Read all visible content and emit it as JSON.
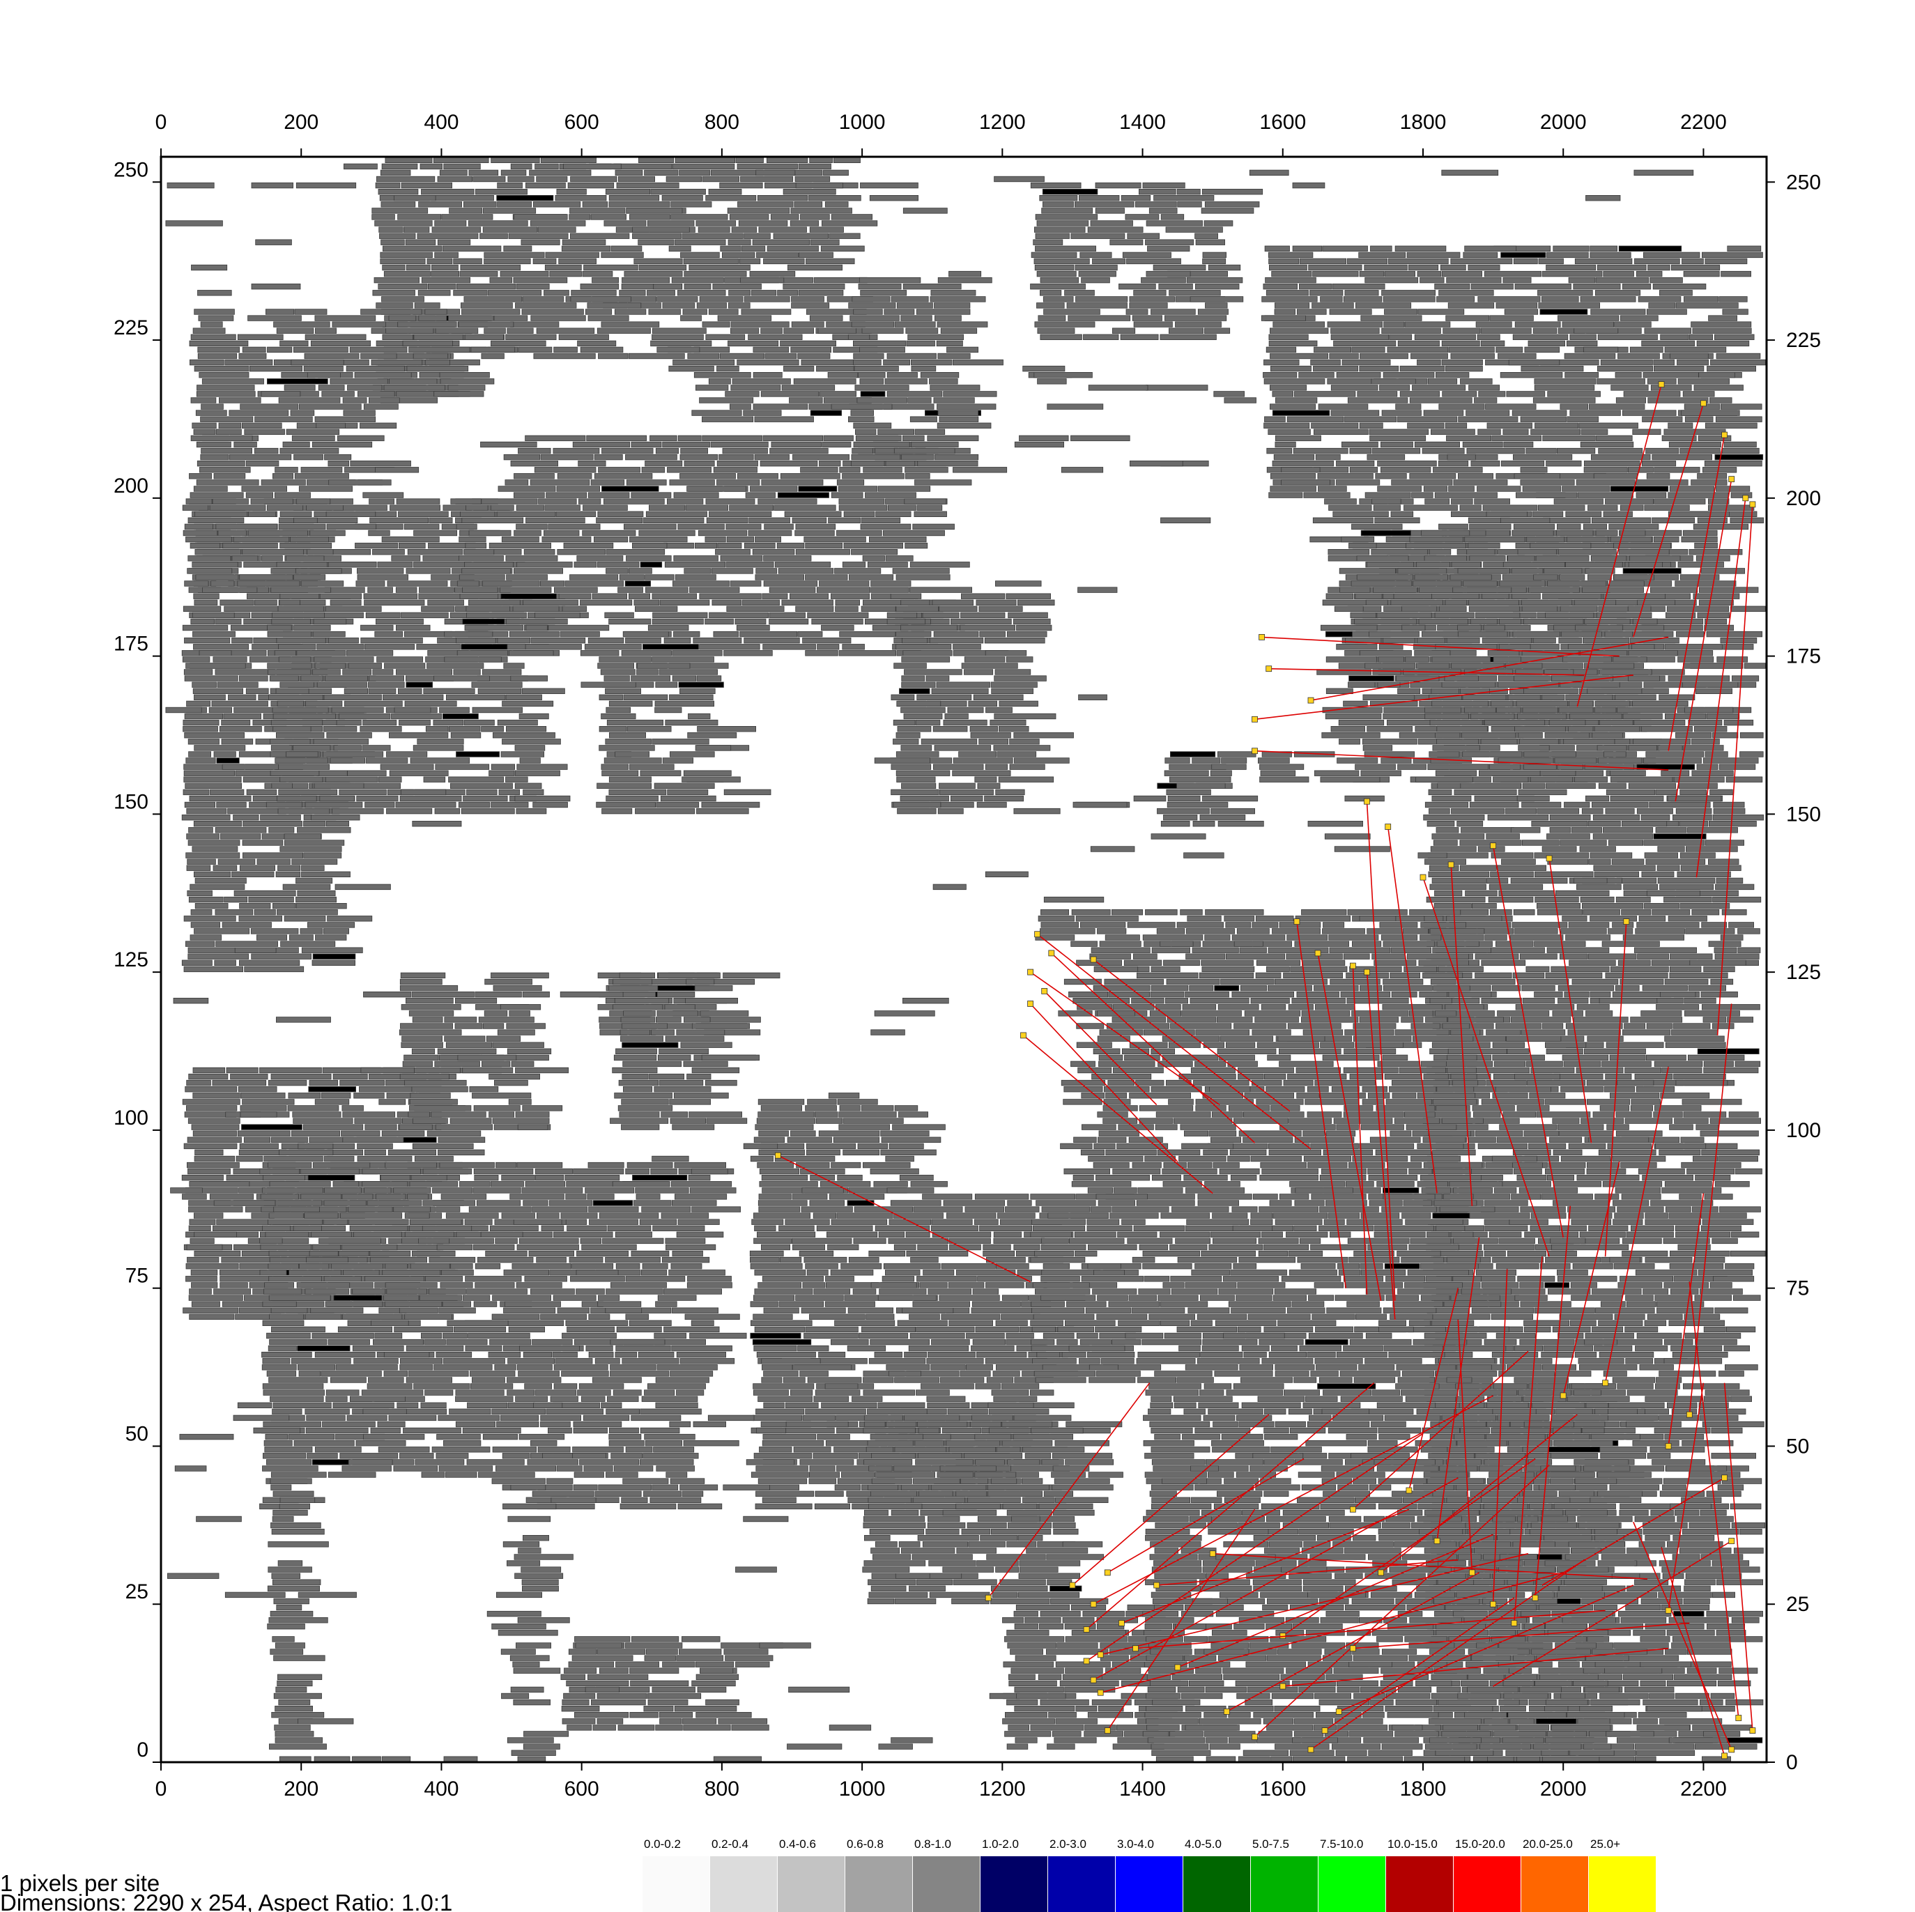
{
  "chart_data": {
    "type": "heatmap",
    "description_units": "site coordinates",
    "x_range": [
      0,
      2290
    ],
    "y_range": [
      0,
      254
    ],
    "x_ticks": [
      0,
      200,
      400,
      600,
      800,
      1000,
      1200,
      1400,
      1600,
      1800,
      2000,
      2200
    ],
    "y_ticks": [
      0,
      25,
      50,
      75,
      100,
      125,
      150,
      175,
      200,
      225,
      250
    ],
    "tick_labels_x": [
      "0",
      "200",
      "400",
      "600",
      "800",
      "1000",
      "1200",
      "1400",
      "1600",
      "1800",
      "2000",
      "2200"
    ],
    "tick_labels_y": [
      "0",
      "25",
      "50",
      "75",
      "100",
      "125",
      "150",
      "175",
      "200",
      "225",
      "250"
    ],
    "cell_fill": "#6b6b6b",
    "cell_stroke": "#3a3a3a",
    "move_line_color": "#dd0000",
    "move_marker_color": "#ffd21f",
    "legend": [
      {
        "label": "0.0-0.2",
        "color": "#fafafa"
      },
      {
        "label": "0.2-0.4",
        "color": "#dcdcdc"
      },
      {
        "label": "0.4-0.6",
        "color": "#c3c3c3"
      },
      {
        "label": "0.6-0.8",
        "color": "#a3a3a3"
      },
      {
        "label": "0.8-1.0",
        "color": "#858585"
      },
      {
        "label": "1.0-2.0",
        "color": "#000066"
      },
      {
        "label": "2.0-3.0",
        "color": "#0000aa"
      },
      {
        "label": "3.0-4.0",
        "color": "#0000ff"
      },
      {
        "label": "4.0-5.0",
        "color": "#006600"
      },
      {
        "label": "5.0-7.5",
        "color": "#00b300"
      },
      {
        "label": "7.5-10.0",
        "color": "#00ff00"
      },
      {
        "label": "10.0-15.0",
        "color": "#b30000"
      },
      {
        "label": "15.0-20.0",
        "color": "#ff0000"
      },
      {
        "label": "20.0-25.0",
        "color": "#ff6600"
      },
      {
        "label": "25.0+",
        "color": "#ffff00"
      }
    ],
    "clusters": [
      {
        "x": [
          300,
          960
        ],
        "y": [
          212,
          254
        ],
        "density": 0.8
      },
      {
        "x": [
          40,
          450
        ],
        "y": [
          185,
          230
        ],
        "density": 0.7
      },
      {
        "x": [
          30,
          240
        ],
        "y": [
          125,
          200
        ],
        "density": 0.85
      },
      {
        "x": [
          150,
          520
        ],
        "y": [
          150,
          185
        ],
        "density": 0.75
      },
      {
        "x": [
          420,
          1080
        ],
        "y": [
          175,
          210
        ],
        "density": 0.8
      },
      {
        "x": [
          620,
          780
        ],
        "y": [
          115,
          175
        ],
        "density": 0.7
      },
      {
        "x": [
          980,
          1130
        ],
        "y": [
          205,
          235
        ],
        "density": 0.7
      },
      {
        "x": [
          1040,
          1230
        ],
        "y": [
          150,
          185
        ],
        "density": 0.7
      },
      {
        "x": [
          1240,
          1500
        ],
        "y": [
          225,
          250
        ],
        "density": 0.6
      },
      {
        "x": [
          1420,
          1520
        ],
        "y": [
          148,
          162
        ],
        "density": 0.6
      },
      {
        "x": [
          1570,
          2280
        ],
        "y": [
          170,
          240
        ],
        "density": 0.8
      },
      {
        "x": [
          1560,
          2100
        ],
        "y": [
          155,
          195
        ],
        "density": 0.75
      },
      {
        "x": [
          1800,
          2280
        ],
        "y": [
          0,
          170
        ],
        "density": 0.82
      },
      {
        "x": [
          30,
          400
        ],
        "y": [
          70,
          110
        ],
        "density": 0.85
      },
      {
        "x": [
          340,
          520
        ],
        "y": [
          100,
          125
        ],
        "density": 0.7
      },
      {
        "x": [
          640,
          780
        ],
        "y": [
          100,
          125
        ],
        "density": 0.7
      },
      {
        "x": [
          140,
          760
        ],
        "y": [
          40,
          95
        ],
        "density": 0.85
      },
      {
        "x": [
          840,
          1240
        ],
        "y": [
          40,
          105
        ],
        "density": 0.85
      },
      {
        "x": [
          1240,
          1850
        ],
        "y": [
          60,
          135
        ],
        "density": 0.85
      },
      {
        "x": [
          150,
          520
        ],
        "y": [
          0,
          45
        ],
        "density": 0.8
      },
      {
        "x": [
          570,
          820
        ],
        "y": [
          5,
          20
        ],
        "density": 0.75
      },
      {
        "x": [
          1000,
          1300
        ],
        "y": [
          25,
          55
        ],
        "density": 0.8
      },
      {
        "x": [
          1200,
          1400
        ],
        "y": [
          2,
          25
        ],
        "density": 0.75
      },
      {
        "x": [
          1400,
          2050
        ],
        "y": [
          0,
          60
        ],
        "density": 0.8
      }
    ],
    "empty_regions": [
      {
        "x": [
          380,
          1100
        ],
        "y": [
          125,
          150
        ]
      },
      {
        "x": [
          440,
          740
        ],
        "y": [
          210,
          222
        ]
      },
      {
        "x": [
          200,
          500
        ],
        "y": [
          1,
          45
        ]
      },
      {
        "x": [
          1430,
          1680
        ],
        "y": [
          160,
          200
        ]
      },
      {
        "x": [
          320,
          480
        ],
        "y": [
          200,
          215
        ]
      },
      {
        "x": [
          1100,
          1300
        ],
        "y": [
          90,
          130
        ]
      }
    ],
    "moves": [
      [
        1250,
        131,
        1640,
        97
      ],
      [
        1240,
        125,
        1510,
        104
      ],
      [
        1240,
        120,
        1450,
        95
      ],
      [
        1270,
        128,
        1560,
        98
      ],
      [
        1230,
        115,
        1500,
        90
      ],
      [
        1260,
        122,
        1420,
        104
      ],
      [
        1330,
        127,
        1610,
        103
      ],
      [
        1620,
        133,
        1690,
        75
      ],
      [
        1650,
        128,
        1740,
        73
      ],
      [
        1700,
        126,
        1720,
        74
      ],
      [
        1720,
        125,
        1760,
        70
      ],
      [
        1800,
        140,
        1980,
        80
      ],
      [
        1840,
        142,
        1870,
        88
      ],
      [
        1900,
        145,
        2000,
        83
      ],
      [
        1980,
        143,
        2040,
        98
      ],
      [
        2090,
        133,
        2060,
        80
      ],
      [
        1750,
        148,
        1820,
        90
      ],
      [
        1720,
        152,
        1760,
        73
      ],
      [
        1580,
        173,
        2030,
        172
      ],
      [
        1570,
        178,
        2080,
        175
      ],
      [
        1560,
        165,
        2100,
        172
      ],
      [
        1640,
        168,
        2150,
        178
      ],
      [
        1560,
        160,
        2150,
        157
      ],
      [
        2140,
        218,
        2020,
        167
      ],
      [
        2200,
        215,
        2100,
        178
      ],
      [
        2230,
        210,
        2150,
        160
      ],
      [
        2240,
        203,
        2160,
        152
      ],
      [
        2260,
        200,
        2190,
        140
      ],
      [
        2270,
        199,
        2220,
        115
      ],
      [
        880,
        96,
        1240,
        76
      ],
      [
        1320,
        21,
        1730,
        60
      ],
      [
        1320,
        16,
        1800,
        52
      ],
      [
        1330,
        13,
        1850,
        45
      ],
      [
        1330,
        25,
        1900,
        58
      ],
      [
        1340,
        17,
        1950,
        33
      ],
      [
        1340,
        11,
        2000,
        30
      ],
      [
        1370,
        22,
        1780,
        40
      ],
      [
        1350,
        30,
        1630,
        48
      ],
      [
        1300,
        28,
        1580,
        55
      ],
      [
        1180,
        26,
        1410,
        60
      ],
      [
        1640,
        2,
        2030,
        32
      ],
      [
        1660,
        5,
        1930,
        26
      ],
      [
        1680,
        8,
        2100,
        28
      ],
      [
        1520,
        8,
        1880,
        30
      ],
      [
        1560,
        4,
        1980,
        47
      ],
      [
        1900,
        25,
        1920,
        78
      ],
      [
        1930,
        22,
        1970,
        80
      ],
      [
        1960,
        26,
        2010,
        88
      ],
      [
        1870,
        30,
        1850,
        70
      ],
      [
        1820,
        35,
        1880,
        83
      ],
      [
        1780,
        43,
        1850,
        75
      ],
      [
        2250,
        7,
        2180,
        76
      ],
      [
        2270,
        5,
        2230,
        60
      ],
      [
        2240,
        2,
        2100,
        38
      ],
      [
        2230,
        1,
        2140,
        34
      ],
      [
        2150,
        24,
        2200,
        60
      ],
      [
        2230,
        45,
        1970,
        28
      ],
      [
        2240,
        35,
        1900,
        12
      ],
      [
        1700,
        40,
        1950,
        65
      ],
      [
        1740,
        30,
        2020,
        55
      ],
      [
        1600,
        20,
        1960,
        48
      ],
      [
        1450,
        15,
        1900,
        36
      ],
      [
        1420,
        28,
        1850,
        32
      ],
      [
        1390,
        18,
        2060,
        24
      ],
      [
        1500,
        33,
        2120,
        29
      ],
      [
        1600,
        12,
        2150,
        18
      ],
      [
        1700,
        18,
        2180,
        22
      ],
      [
        1350,
        5,
        1560,
        40
      ],
      [
        2000,
        58,
        2080,
        95
      ],
      [
        2060,
        60,
        2150,
        110
      ],
      [
        2150,
        50,
        2200,
        90
      ],
      [
        2180,
        55,
        2240,
        120
      ]
    ]
  },
  "footer": {
    "pixels_per_site": "1 pixels  per  site",
    "dimensions": "Dimensions:  2290  x  254,  Aspect  Ratio:  1.0:1"
  }
}
